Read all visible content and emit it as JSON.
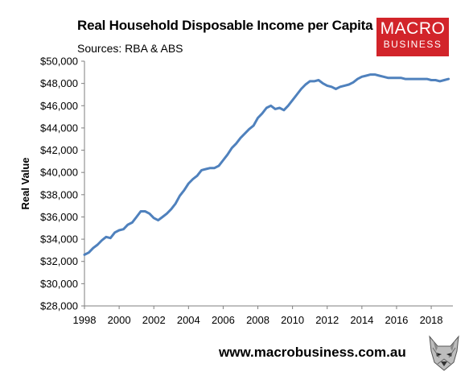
{
  "header": {
    "title": "Real Household Disposable Income per Capita",
    "subtitle": "Sources: RBA & ABS"
  },
  "logo": {
    "line1": "MACRO",
    "line2": "BUSINESS",
    "color": "#d2242a"
  },
  "footer": {
    "url": "www.macrobusiness.com.au",
    "mascot_icon": "wolf-head-icon"
  },
  "chart_data": {
    "type": "line",
    "title": "Real Household Disposable Income per Capita",
    "subtitle": "Sources: RBA & ABS",
    "xlabel": "",
    "ylabel": "Real Value",
    "xlim": [
      1998,
      2019.25
    ],
    "ylim": [
      28000,
      50000
    ],
    "x_ticks": [
      1998,
      2000,
      2002,
      2004,
      2006,
      2008,
      2010,
      2012,
      2014,
      2016,
      2018
    ],
    "x_tick_labels": [
      "1998",
      "2000",
      "2002",
      "2004",
      "2006",
      "2008",
      "2010",
      "2012",
      "2014",
      "2016",
      "2018"
    ],
    "y_ticks": [
      28000,
      30000,
      32000,
      34000,
      36000,
      38000,
      40000,
      42000,
      44000,
      46000,
      48000,
      50000
    ],
    "y_tick_labels": [
      "$28,000",
      "$30,000",
      "$32,000",
      "$34,000",
      "$36,000",
      "$38,000",
      "$40,000",
      "$42,000",
      "$44,000",
      "$46,000",
      "$48,000",
      "$50,000"
    ],
    "grid": false,
    "line_color": "#4f81bd",
    "series": [
      {
        "x": [
          1998.0,
          1998.25,
          1998.5,
          1998.75,
          1999.0,
          1999.25,
          1999.5,
          1999.75,
          2000.0,
          2000.25,
          2000.5,
          2000.75,
          2001.0,
          2001.25,
          2001.5,
          2001.75,
          2002.0,
          2002.25,
          2002.5,
          2002.75,
          2003.0,
          2003.25,
          2003.5,
          2003.75,
          2004.0,
          2004.25,
          2004.5,
          2004.75,
          2005.0,
          2005.25,
          2005.5,
          2005.75,
          2006.0,
          2006.25,
          2006.5,
          2006.75,
          2007.0,
          2007.25,
          2007.5,
          2007.75,
          2008.0,
          2008.25,
          2008.5,
          2008.75,
          2009.0,
          2009.25,
          2009.5,
          2009.75,
          2010.0,
          2010.25,
          2010.5,
          2010.75,
          2011.0,
          2011.25,
          2011.5,
          2011.75,
          2012.0,
          2012.25,
          2012.5,
          2012.75,
          2013.0,
          2013.25,
          2013.5,
          2013.75,
          2014.0,
          2014.25,
          2014.5,
          2014.75,
          2015.0,
          2015.25,
          2015.5,
          2015.75,
          2016.0,
          2016.25,
          2016.5,
          2016.75,
          2017.0,
          2017.25,
          2017.5,
          2017.75,
          2018.0,
          2018.25,
          2018.5,
          2018.75,
          2019.0
        ],
        "values": [
          32600,
          32800,
          33200,
          33500,
          33900,
          34200,
          34100,
          34600,
          34800,
          34900,
          35300,
          35500,
          36000,
          36500,
          36500,
          36300,
          35900,
          35700,
          36000,
          36300,
          36700,
          37200,
          37900,
          38400,
          39000,
          39400,
          39700,
          40200,
          40300,
          40400,
          40400,
          40600,
          41100,
          41600,
          42200,
          42600,
          43100,
          43500,
          43900,
          44200,
          44900,
          45300,
          45800,
          46000,
          45700,
          45800,
          45600,
          46000,
          46500,
          47000,
          47500,
          47900,
          48200,
          48200,
          48300,
          48000,
          47800,
          47700,
          47500,
          47700,
          47800,
          47900,
          48100,
          48400,
          48600,
          48700,
          48800,
          48800,
          48700,
          48600,
          48500,
          48500,
          48500,
          48500,
          48400,
          48400,
          48400,
          48400,
          48400,
          48400,
          48300,
          48300,
          48200,
          48300,
          48400
        ]
      }
    ]
  }
}
